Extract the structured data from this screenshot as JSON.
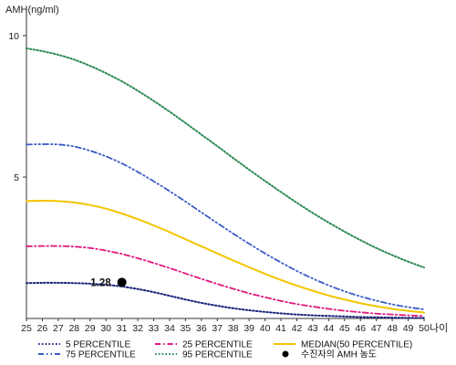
{
  "chart_data": {
    "type": "line",
    "ylabel": "AMH(ng/ml)",
    "xlabel": "나이",
    "ylim": [
      0,
      11
    ],
    "xlim": [
      25,
      50
    ],
    "yticks": [
      5,
      10
    ],
    "categories": [
      "25",
      "26",
      "27",
      "28",
      "29",
      "30",
      "31",
      "32",
      "33",
      "34",
      "35",
      "36",
      "37",
      "38",
      "39",
      "40",
      "41",
      "42",
      "43",
      "44",
      "45",
      "46",
      "47",
      "48",
      "49",
      "50"
    ],
    "x": [
      25,
      26,
      27,
      28,
      29,
      30,
      31,
      32,
      33,
      34,
      35,
      36,
      37,
      38,
      39,
      40,
      41,
      42,
      43,
      44,
      45,
      46,
      47,
      48,
      49,
      50
    ],
    "grid": false,
    "legend_position": "bottom",
    "series": [
      {
        "name": "5 PERCENTILE",
        "color": "#1a237e",
        "style": "dotted",
        "values": [
          1.25,
          1.26,
          1.26,
          1.25,
          1.23,
          1.19,
          1.13,
          1.04,
          0.93,
          0.8,
          0.67,
          0.55,
          0.45,
          0.36,
          0.29,
          0.23,
          0.18,
          0.14,
          0.11,
          0.09,
          0.07,
          0.05,
          0.04,
          0.03,
          0.02,
          0.02
        ]
      },
      {
        "name": "25 PERCENTILE",
        "color": "#e0177f",
        "style": "dashdot",
        "values": [
          2.55,
          2.56,
          2.56,
          2.54,
          2.49,
          2.4,
          2.28,
          2.13,
          1.96,
          1.78,
          1.59,
          1.4,
          1.22,
          1.05,
          0.89,
          0.75,
          0.62,
          0.51,
          0.42,
          0.34,
          0.27,
          0.22,
          0.17,
          0.14,
          0.11,
          0.09
        ]
      },
      {
        "name": "MEDIAN(50 PERCENTILE)",
        "color": "#f2c500",
        "style": "solid",
        "values": [
          4.15,
          4.16,
          4.15,
          4.1,
          4.01,
          3.88,
          3.71,
          3.51,
          3.29,
          3.05,
          2.8,
          2.55,
          2.3,
          2.05,
          1.81,
          1.58,
          1.36,
          1.16,
          0.98,
          0.81,
          0.67,
          0.54,
          0.43,
          0.34,
          0.27,
          0.21
        ]
      },
      {
        "name": "75 PERCENTILE",
        "color": "#3a5bc7",
        "style": "dashdotdot",
        "values": [
          6.15,
          6.16,
          6.15,
          6.08,
          5.93,
          5.73,
          5.48,
          5.18,
          4.85,
          4.5,
          4.13,
          3.75,
          3.37,
          3.0,
          2.64,
          2.3,
          1.98,
          1.68,
          1.41,
          1.17,
          0.96,
          0.78,
          0.63,
          0.5,
          0.4,
          0.32
        ]
      },
      {
        "name": "95 PERCENTILE",
        "color": "#2e8b57",
        "style": "dotted",
        "values": [
          9.55,
          9.45,
          9.32,
          9.15,
          8.93,
          8.67,
          8.38,
          8.05,
          7.69,
          7.31,
          6.91,
          6.5,
          6.09,
          5.67,
          5.26,
          4.86,
          4.47,
          4.09,
          3.73,
          3.39,
          3.07,
          2.77,
          2.49,
          2.24,
          2.01,
          1.8
        ]
      }
    ],
    "points": [
      {
        "name": "수진자의 AMH 농도",
        "x": 31,
        "y": 1.28,
        "label": "1.28",
        "color": "#000000"
      }
    ]
  }
}
